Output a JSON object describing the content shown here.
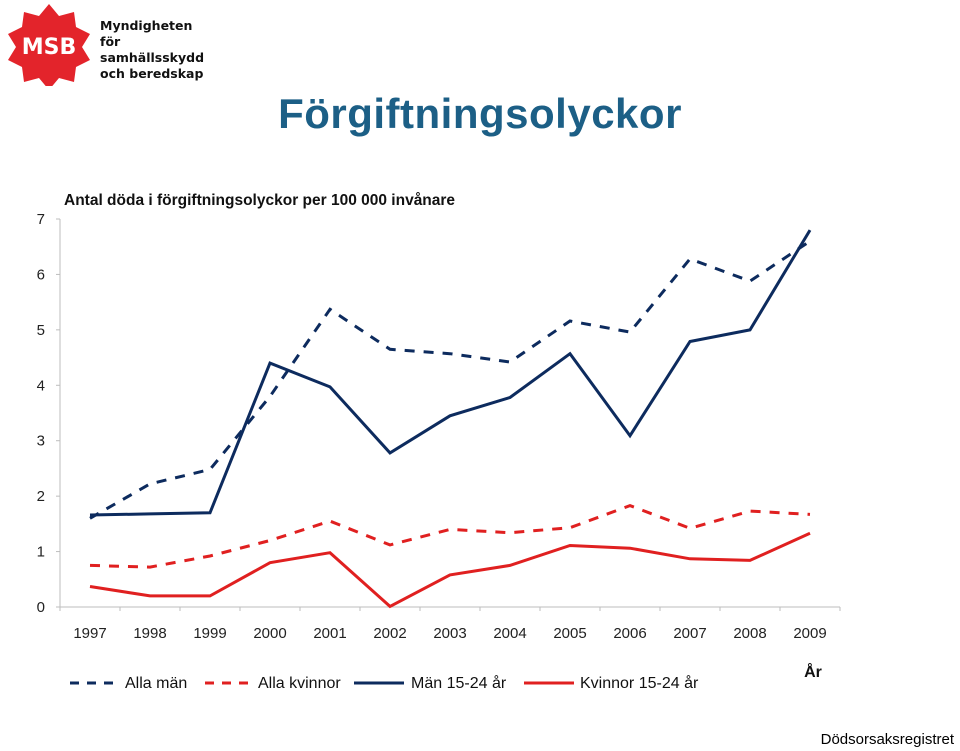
{
  "header": {
    "org_lines": [
      "Myndigheten för",
      "samhällsskydd",
      "och beredskap"
    ],
    "logo_text": "MSB",
    "logo_color": "#e3242b"
  },
  "page_title": "Förgiftningsolyckor",
  "source": "Dödsorsaksregistret",
  "chart_data": {
    "type": "line",
    "title": "Antal döda i förgiftningsolyckor per 100 000 invånare",
    "xlabel": "År",
    "ylabel": "",
    "ylim": [
      0,
      7
    ],
    "yticks": [
      0,
      1,
      2,
      3,
      4,
      5,
      6,
      7
    ],
    "categories": [
      "1997",
      "1998",
      "1999",
      "2000",
      "2001",
      "2002",
      "2003",
      "2004",
      "2005",
      "2006",
      "2007",
      "2008",
      "2009"
    ],
    "grid": false,
    "legend": "bottom",
    "series": [
      {
        "name": "Alla män",
        "color": "#0d2b5e",
        "style": "dashed",
        "values": [
          1.6,
          2.22,
          2.48,
          3.8,
          5.37,
          4.65,
          4.57,
          4.42,
          5.16,
          4.96,
          6.28,
          5.88,
          6.6
        ]
      },
      {
        "name": "Alla kvinnor",
        "color": "#e02020",
        "style": "dashed",
        "values": [
          0.75,
          0.72,
          0.92,
          1.2,
          1.55,
          1.12,
          1.4,
          1.34,
          1.43,
          1.83,
          1.42,
          1.73,
          1.67
        ]
      },
      {
        "name": "Män 15-24 år",
        "color": "#0d2b5e",
        "style": "solid",
        "values": [
          1.66,
          1.68,
          1.7,
          4.4,
          3.97,
          2.78,
          3.45,
          3.78,
          4.57,
          3.09,
          4.79,
          5.0,
          6.8
        ]
      },
      {
        "name": "Kvinnor 15-24 år",
        "color": "#e02020",
        "style": "solid",
        "values": [
          0.37,
          0.2,
          0.2,
          0.8,
          0.98,
          0.01,
          0.58,
          0.75,
          1.11,
          1.06,
          0.87,
          0.84,
          1.33
        ]
      }
    ]
  }
}
